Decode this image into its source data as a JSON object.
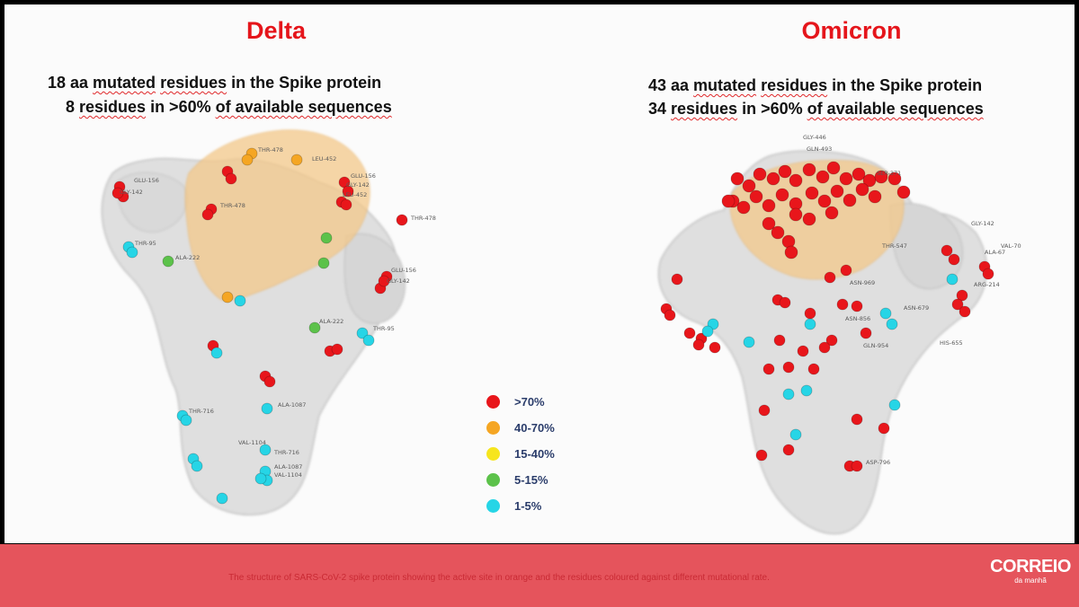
{
  "left_panel": {
    "title": "Delta",
    "line1": {
      "a": "18 aa ",
      "b": "mutated",
      "c": " ",
      "d": "residues",
      "e": " in the Spike protein"
    },
    "line2": {
      "a": "8 ",
      "b": "residues",
      "c": " in >60% ",
      "d": "of available sequences",
      "e": ""
    },
    "labels": [
      "GLU-156",
      "GLY-142",
      "THR-478",
      "LEU-452",
      "GLU-156",
      "GLY-142",
      "LEU-452",
      "THR-478",
      "THR-478",
      "THR-95",
      "ALA-222",
      "GLU-156",
      "GLY-142",
      "ALA-222",
      "THR-95",
      "THR-716",
      "ALA-1087",
      "VAL-1104",
      "THR-716",
      "ALA-1087",
      "VAL-1104"
    ]
  },
  "right_panel": {
    "title": "Omicron",
    "line1": {
      "a": "43 aa ",
      "b": "mutated",
      "c": " ",
      "d": "residues",
      "e": " in the Spike protein"
    },
    "line2": {
      "a": "34 ",
      "b": "residues",
      "c": " in >60% ",
      "d": "of available sequences",
      "e": ""
    },
    "labels": [
      "GLY-446",
      "GLN-493",
      "SER-371",
      "THR-547",
      "GLY-142",
      "VAL-70",
      "ALA-67",
      "ARG-214",
      "ASN-856",
      "ASN-969",
      "ASN-679",
      "GLN-954",
      "HIS-655",
      "ASP-796"
    ]
  },
  "legend": [
    {
      "label": ">70%",
      "color": "#e8161b"
    },
    {
      "label": "40-70%",
      "color": "#f5a623"
    },
    {
      "label": "15-40%",
      "color": "#f6e51d"
    },
    {
      "label": "5-15%",
      "color": "#5cc24a"
    },
    {
      "label": "1-5%",
      "color": "#26d5e6"
    }
  ],
  "caption": "The structure of SARS-CoV-2 spike protein showing the active site in orange and the residues coloured against different mutational rate.",
  "logo": {
    "main": "CORREIO",
    "sub": "da manhã"
  },
  "colors": {
    "title": "#e5151b",
    "band": "#e5545c",
    "underline": "#e0282a"
  }
}
